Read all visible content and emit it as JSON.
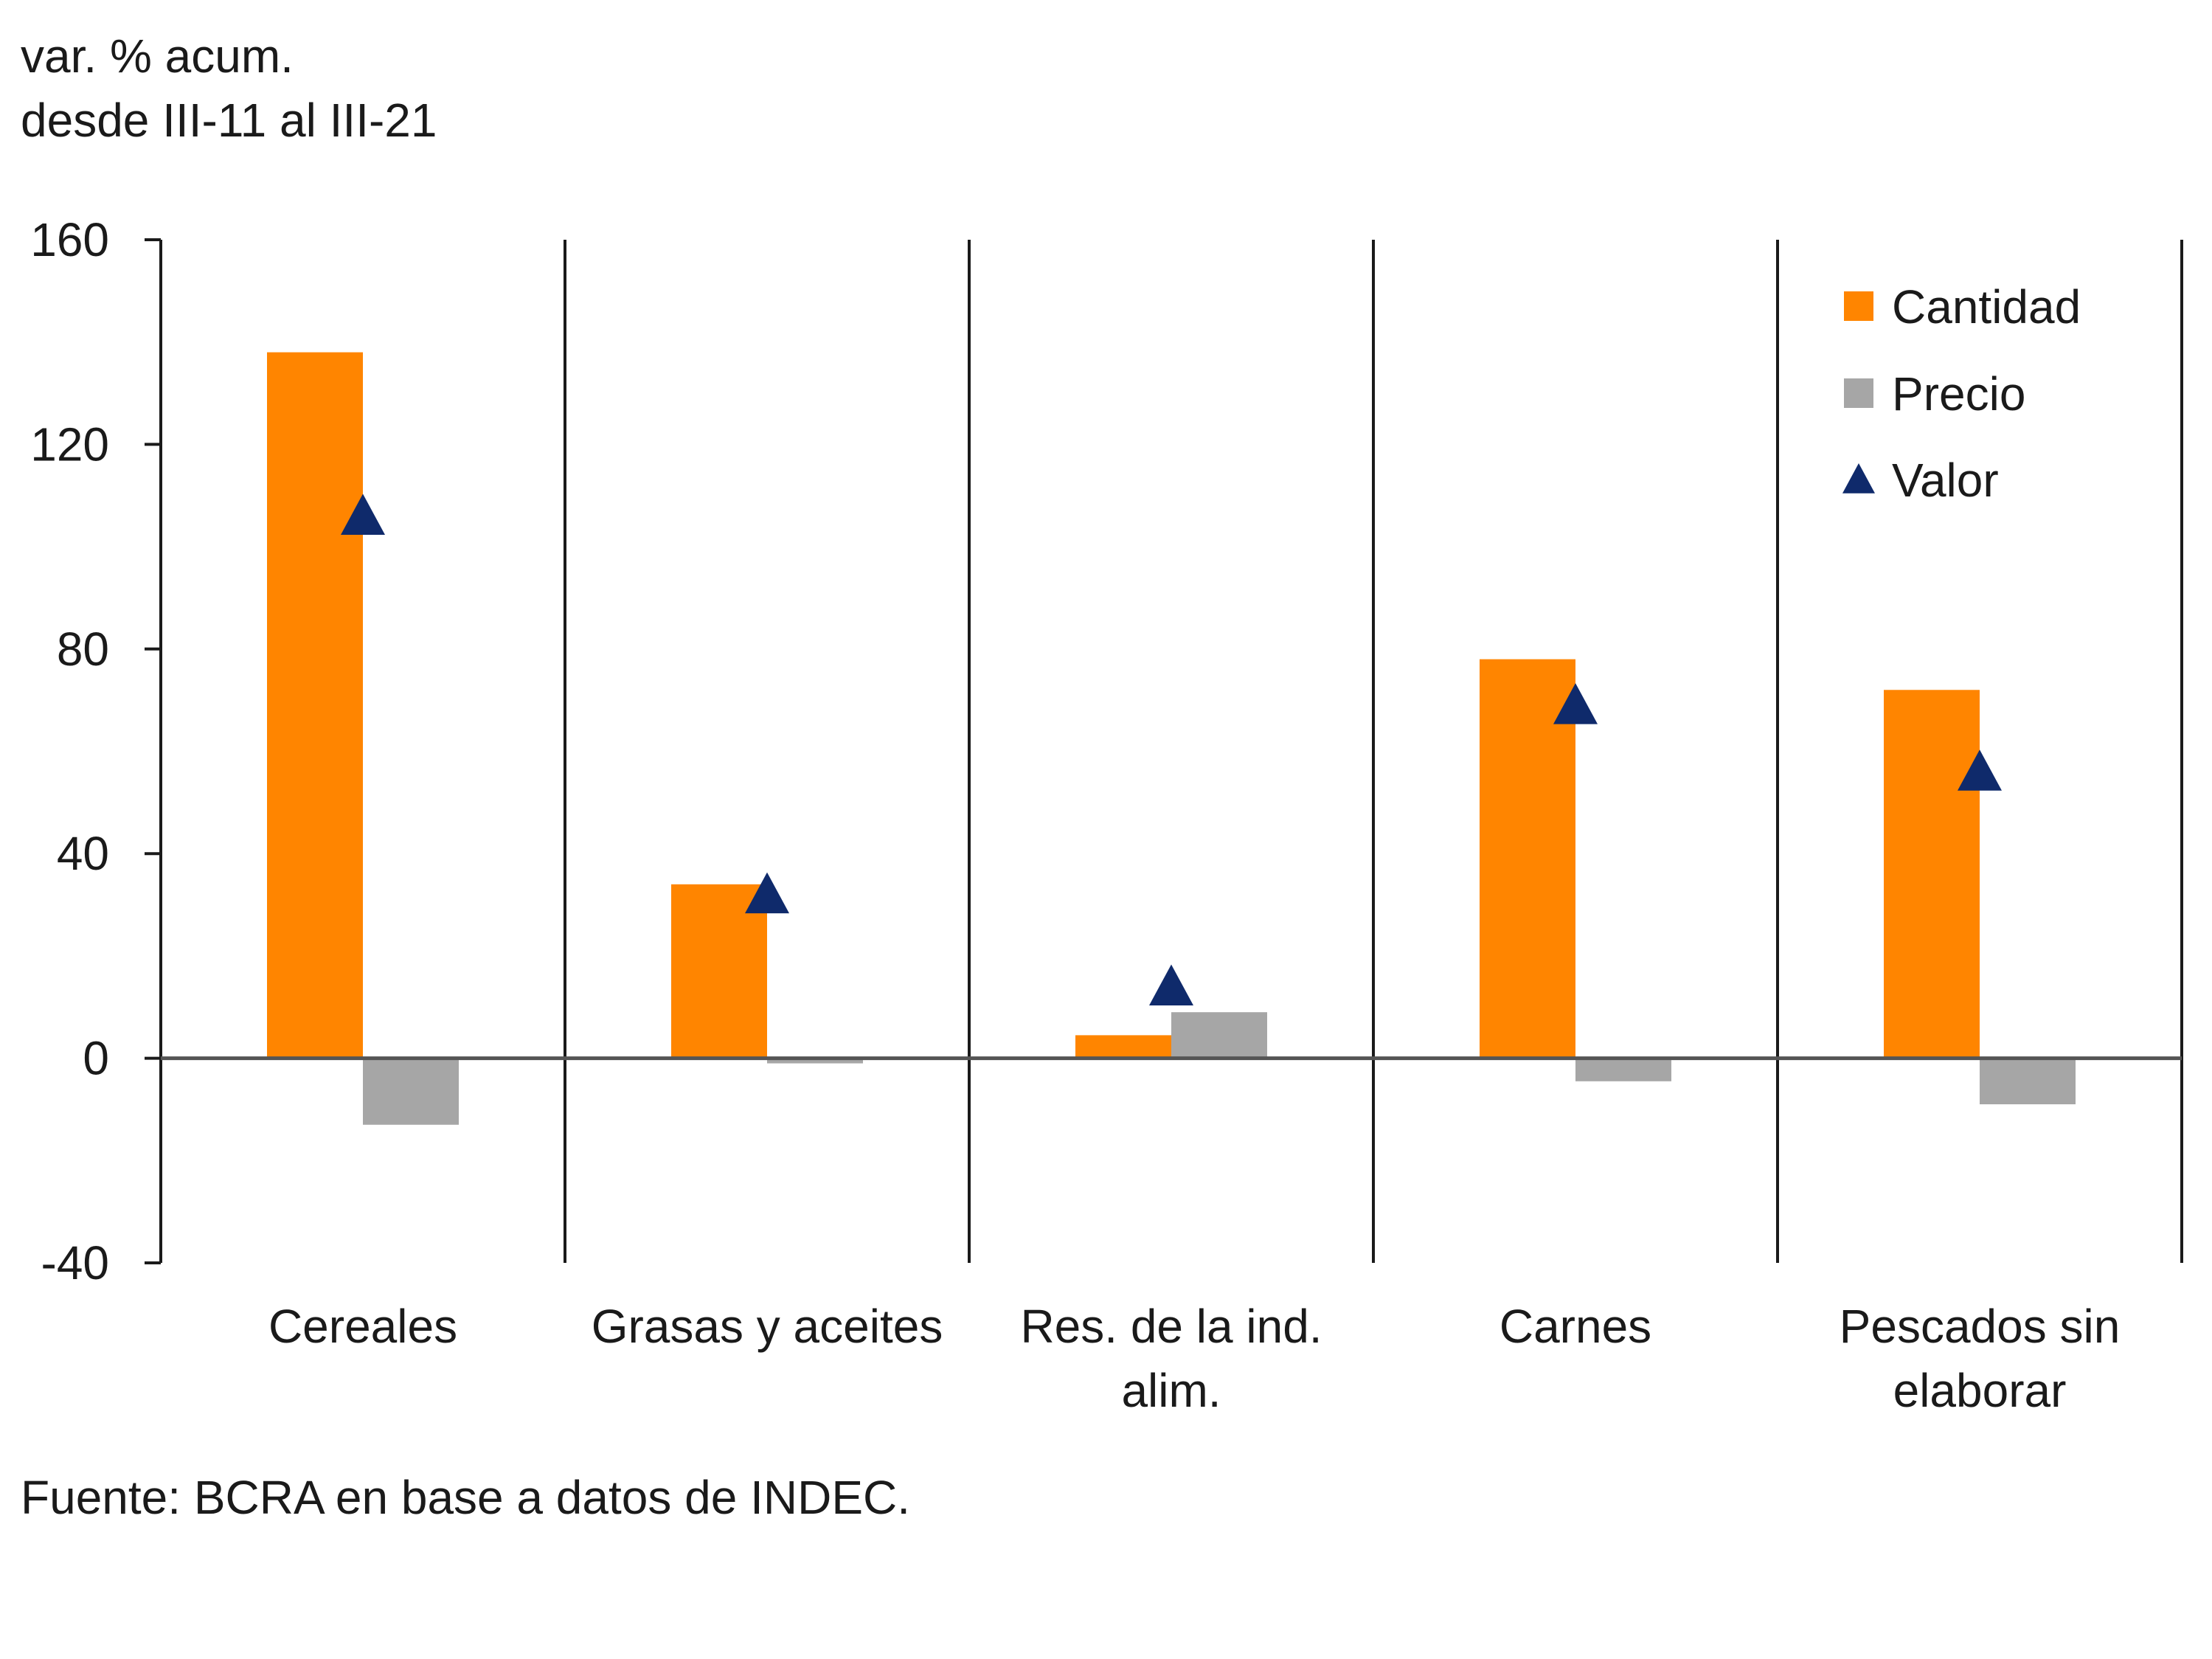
{
  "chart_data": {
    "type": "bar",
    "ylabel_lines": [
      "var. % acum.",
      "desde III-11 al III-21"
    ],
    "source": "Fuente: BCRA en base a datos de INDEC.",
    "ylim": [
      -40,
      160
    ],
    "yticks": [
      160,
      120,
      80,
      40,
      0,
      -40
    ],
    "categories": [
      [
        "Cereales"
      ],
      [
        "Grasas y aceites"
      ],
      [
        "Res. de la ind.",
        "alim."
      ],
      [
        "Carnes"
      ],
      [
        "Pescados sin",
        "elaborar"
      ]
    ],
    "series": [
      {
        "name": "Cantidad",
        "kind": "bar",
        "color": "#ff8500",
        "values": [
          138,
          34,
          4.5,
          78,
          72
        ]
      },
      {
        "name": "Precio",
        "kind": "bar",
        "color": "#a6a6a6",
        "values": [
          -13,
          -1,
          9,
          -4.5,
          -9
        ]
      },
      {
        "name": "Valor",
        "kind": "marker-triangle",
        "color": "#0f2a6b",
        "values": [
          106,
          32,
          14,
          69,
          56
        ]
      }
    ],
    "legend_position": "top-right",
    "grid": false
  }
}
